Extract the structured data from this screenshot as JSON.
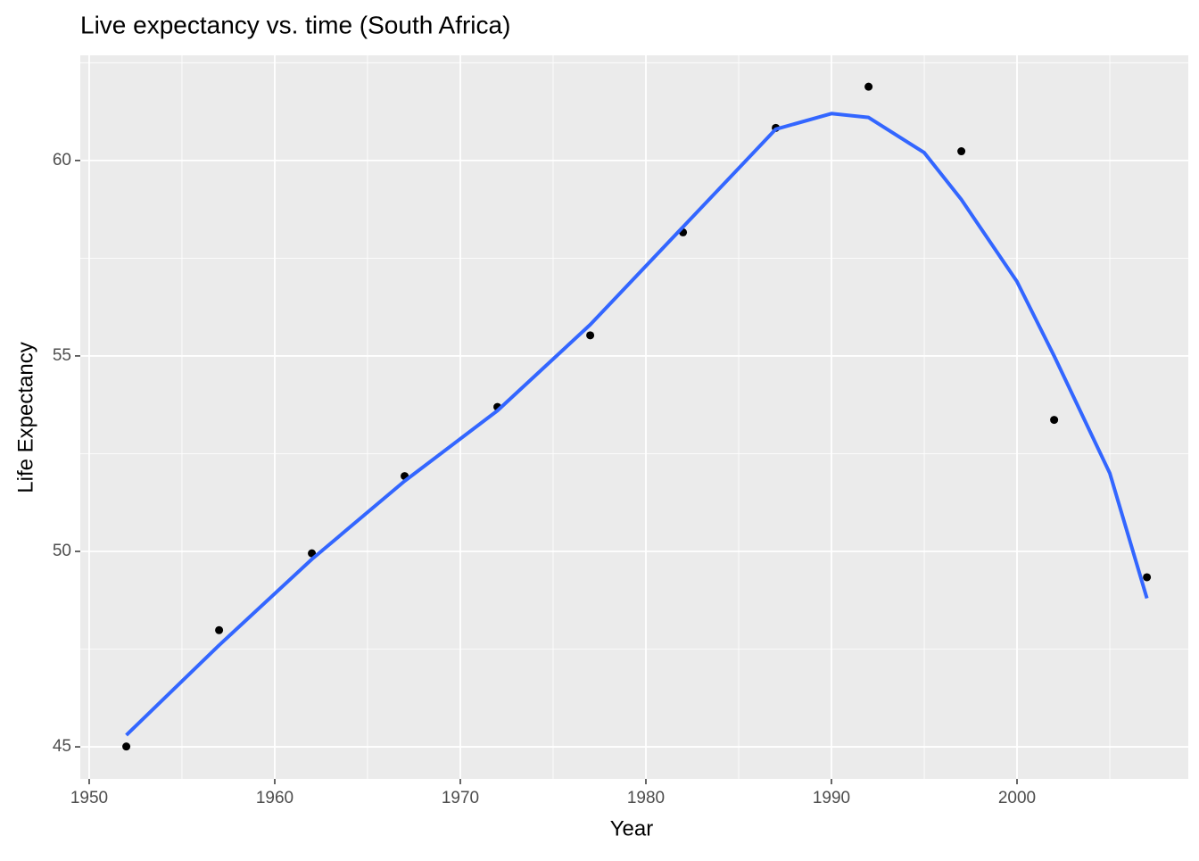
{
  "chart_data": {
    "type": "scatter",
    "title": "Live expectancy vs. time (South Africa)",
    "x_label": "Year",
    "y_label": "Life Expectancy",
    "xlim": [
      1949.52,
      2009.23
    ],
    "ylim": [
      44.18,
      62.69
    ],
    "xticks": [
      1950,
      1960,
      1970,
      1980,
      1990,
      2000
    ],
    "yticks": [
      45,
      50,
      55,
      60
    ],
    "x_minor_ticks": [
      1955,
      1965,
      1975,
      1985,
      1995,
      2005
    ],
    "y_minor_ticks": [
      47.5,
      52.5,
      57.5,
      62.5
    ],
    "grid": true,
    "series": [
      {
        "type": "scatter",
        "color": "#000000",
        "x": [
          1952,
          1957,
          1962,
          1967,
          1972,
          1977,
          1982,
          1987,
          1992,
          1997,
          2002,
          2007
        ],
        "values": [
          45.009,
          47.985,
          49.951,
          51.927,
          53.696,
          55.527,
          58.161,
          60.834,
          61.888,
          60.236,
          53.365,
          49.339
        ]
      },
      {
        "type": "line",
        "color": "#3366FF",
        "x": [
          1952,
          1957,
          1962,
          1967,
          1972,
          1977,
          1982,
          1985,
          1987,
          1990,
          1992,
          1995,
          1997,
          2000,
          2002,
          2005,
          2007
        ],
        "values": [
          45.3,
          47.6,
          49.8,
          51.8,
          53.6,
          55.8,
          58.3,
          59.8,
          60.8,
          61.2,
          61.1,
          60.2,
          59.0,
          56.9,
          55.0,
          52.0,
          48.8
        ]
      }
    ]
  }
}
